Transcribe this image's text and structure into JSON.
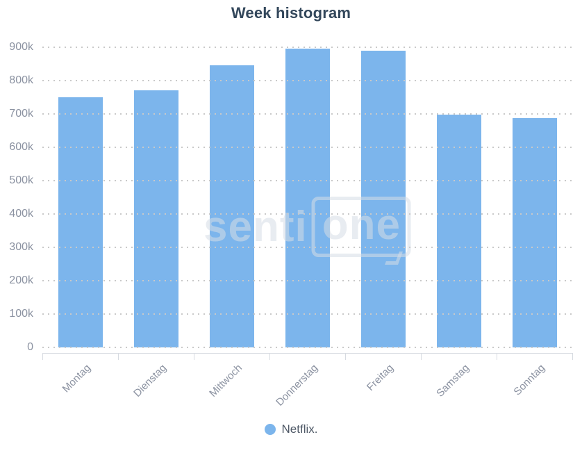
{
  "title": "Week histogram",
  "watermark": {
    "text": "senti",
    "boxed_text": "one"
  },
  "colors": {
    "bar": "#7cb5ec",
    "title_text": "#33475b",
    "axis_label_text": "#8b92a1",
    "gridline": "#c9c9c9",
    "axis_line": "#d7dbe1",
    "legend_text": "#4e5866",
    "watermark": "#dce1e9"
  },
  "chart_data": {
    "type": "bar",
    "title": "Week histogram",
    "categories": [
      "Montag",
      "Dienstag",
      "Mittwoch",
      "Donnerstag",
      "Freitag",
      "Samstag",
      "Sonntag"
    ],
    "series": [
      {
        "name": "Netflix.",
        "color": "#7cb5ec",
        "values": [
          750000,
          770000,
          845000,
          895000,
          890000,
          698000,
          687000
        ]
      }
    ],
    "xlabel": "",
    "ylabel": "",
    "ylim": [
      0,
      900000
    ],
    "ytick_interval": 100000,
    "ytick_labels": [
      "0",
      "100k",
      "200k",
      "300k",
      "400k",
      "500k",
      "600k",
      "700k",
      "800k",
      "900k"
    ],
    "grid": "horizontal-dotted",
    "gridlines_above_bars": true,
    "x_label_rotation": -45,
    "legend_position": "bottom-center"
  }
}
